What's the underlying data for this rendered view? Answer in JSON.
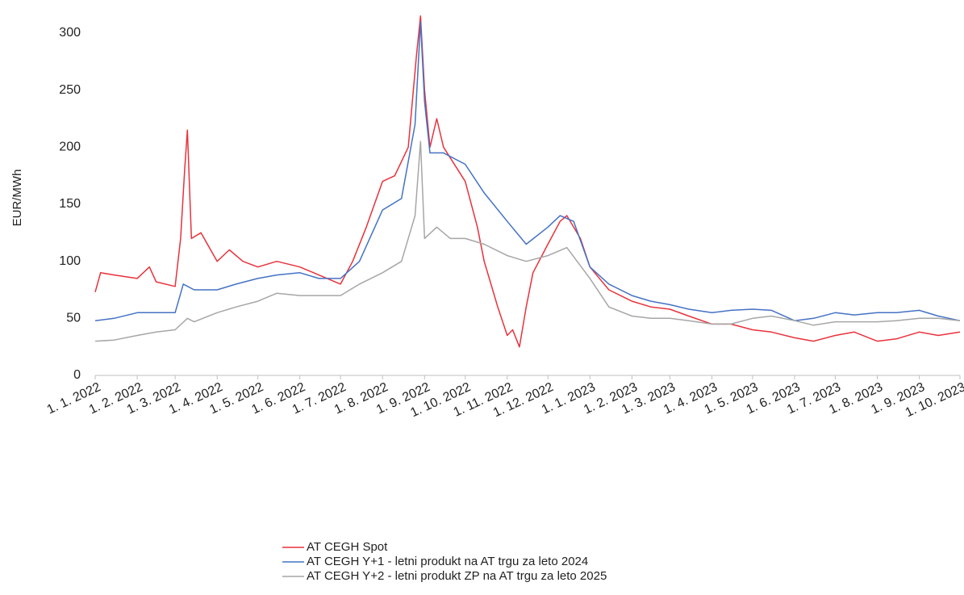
{
  "chart_data": {
    "type": "line",
    "y_label": "EUR/MWh",
    "ylim": [
      0,
      300
    ],
    "yticks": [
      0,
      50,
      100,
      150,
      200,
      250,
      300
    ],
    "xlim": [
      "2022-01-01",
      "2023-10-01"
    ],
    "xticks": [
      {
        "value": "2022-01-01",
        "label": "1. 1. 2022"
      },
      {
        "value": "2022-02-01",
        "label": "1. 2. 2022"
      },
      {
        "value": "2022-03-01",
        "label": "1. 3. 2022"
      },
      {
        "value": "2022-04-01",
        "label": "1. 4. 2022"
      },
      {
        "value": "2022-05-01",
        "label": "1. 5. 2022"
      },
      {
        "value": "2022-06-01",
        "label": "1. 6. 2022"
      },
      {
        "value": "2022-07-01",
        "label": "1. 7. 2022"
      },
      {
        "value": "2022-08-01",
        "label": "1. 8. 2022"
      },
      {
        "value": "2022-09-01",
        "label": "1. 9. 2022"
      },
      {
        "value": "2022-10-01",
        "label": "1. 10. 2022"
      },
      {
        "value": "2022-11-01",
        "label": "1. 11. 2022"
      },
      {
        "value": "2022-12-01",
        "label": "1. 12. 2022"
      },
      {
        "value": "2023-01-01",
        "label": "1. 1. 2023"
      },
      {
        "value": "2023-02-01",
        "label": "1. 2. 2023"
      },
      {
        "value": "2023-03-01",
        "label": "1. 3. 2023"
      },
      {
        "value": "2023-04-01",
        "label": "1. 4. 2023"
      },
      {
        "value": "2023-05-01",
        "label": "1. 5. 2023"
      },
      {
        "value": "2023-06-01",
        "label": "1. 6. 2023"
      },
      {
        "value": "2023-07-01",
        "label": "1. 7. 2023"
      },
      {
        "value": "2023-08-01",
        "label": "1. 8. 2023"
      },
      {
        "value": "2023-09-01",
        "label": "1. 9. 2023"
      },
      {
        "value": "2023-10-01",
        "label": "1. 10. 2023"
      }
    ],
    "series": [
      {
        "name": "AT CEGH Spot",
        "color": "#e8323c",
        "x": [
          "2022-01-01",
          "2022-01-05",
          "2022-01-15",
          "2022-02-01",
          "2022-02-10",
          "2022-02-15",
          "2022-03-01",
          "2022-03-05",
          "2022-03-08",
          "2022-03-10",
          "2022-03-13",
          "2022-03-20",
          "2022-04-01",
          "2022-04-10",
          "2022-04-20",
          "2022-05-01",
          "2022-05-15",
          "2022-06-01",
          "2022-06-15",
          "2022-07-01",
          "2022-07-10",
          "2022-07-20",
          "2022-08-01",
          "2022-08-10",
          "2022-08-20",
          "2022-08-26",
          "2022-08-29",
          "2022-09-01",
          "2022-09-05",
          "2022-09-10",
          "2022-09-15",
          "2022-10-01",
          "2022-10-10",
          "2022-10-15",
          "2022-10-20",
          "2022-10-25",
          "2022-11-01",
          "2022-11-05",
          "2022-11-10",
          "2022-11-15",
          "2022-11-20",
          "2022-12-01",
          "2022-12-10",
          "2022-12-15",
          "2022-12-25",
          "2023-01-01",
          "2023-01-15",
          "2023-02-01",
          "2023-02-15",
          "2023-03-01",
          "2023-03-15",
          "2023-04-01",
          "2023-04-15",
          "2023-05-01",
          "2023-05-15",
          "2023-06-01",
          "2023-06-15",
          "2023-07-01",
          "2023-07-15",
          "2023-08-01",
          "2023-08-15",
          "2023-09-01",
          "2023-09-15",
          "2023-10-01"
        ],
        "values": [
          73,
          90,
          88,
          85,
          95,
          82,
          78,
          120,
          180,
          215,
          120,
          125,
          100,
          110,
          100,
          95,
          100,
          95,
          88,
          80,
          100,
          130,
          170,
          175,
          200,
          280,
          315,
          250,
          200,
          225,
          200,
          170,
          130,
          100,
          80,
          60,
          35,
          40,
          25,
          60,
          90,
          115,
          135,
          140,
          120,
          95,
          75,
          65,
          60,
          58,
          52,
          45,
          45,
          40,
          38,
          33,
          30,
          35,
          38,
          30,
          32,
          38,
          35,
          38
        ]
      },
      {
        "name": "AT CEGH Y+1 - letni produkt na AT trgu za leto 2024",
        "color": "#4472c4",
        "x": [
          "2022-01-01",
          "2022-01-15",
          "2022-02-01",
          "2022-02-15",
          "2022-03-01",
          "2022-03-07",
          "2022-03-15",
          "2022-04-01",
          "2022-04-15",
          "2022-05-01",
          "2022-05-15",
          "2022-06-01",
          "2022-06-15",
          "2022-07-01",
          "2022-07-15",
          "2022-08-01",
          "2022-08-15",
          "2022-08-25",
          "2022-08-29",
          "2022-09-01",
          "2022-09-05",
          "2022-09-15",
          "2022-10-01",
          "2022-10-15",
          "2022-11-01",
          "2022-11-15",
          "2022-12-01",
          "2022-12-10",
          "2022-12-20",
          "2023-01-01",
          "2023-01-15",
          "2023-02-01",
          "2023-02-15",
          "2023-03-01",
          "2023-03-15",
          "2023-04-01",
          "2023-04-15",
          "2023-05-01",
          "2023-05-15",
          "2023-06-01",
          "2023-06-15",
          "2023-07-01",
          "2023-07-15",
          "2023-08-01",
          "2023-08-15",
          "2023-09-01",
          "2023-09-15",
          "2023-10-01"
        ],
        "values": [
          48,
          50,
          55,
          55,
          55,
          80,
          75,
          75,
          80,
          85,
          88,
          90,
          85,
          85,
          100,
          145,
          155,
          220,
          310,
          240,
          195,
          195,
          185,
          160,
          135,
          115,
          130,
          140,
          135,
          95,
          80,
          70,
          65,
          62,
          58,
          55,
          57,
          58,
          57,
          48,
          50,
          55,
          53,
          55,
          55,
          57,
          52,
          48
        ]
      },
      {
        "name": "AT CEGH Y+2 - letni produkt ZP na AT trgu za leto 2025",
        "color": "#a6a6a6",
        "x": [
          "2022-01-01",
          "2022-01-15",
          "2022-02-01",
          "2022-02-15",
          "2022-03-01",
          "2022-03-10",
          "2022-03-15",
          "2022-04-01",
          "2022-04-15",
          "2022-05-01",
          "2022-05-15",
          "2022-06-01",
          "2022-06-15",
          "2022-07-01",
          "2022-07-15",
          "2022-08-01",
          "2022-08-15",
          "2022-08-25",
          "2022-08-29",
          "2022-09-01",
          "2022-09-10",
          "2022-09-20",
          "2022-10-01",
          "2022-10-15",
          "2022-11-01",
          "2022-11-15",
          "2022-12-01",
          "2022-12-15",
          "2023-01-01",
          "2023-01-15",
          "2023-02-01",
          "2023-02-15",
          "2023-03-01",
          "2023-03-15",
          "2023-04-01",
          "2023-04-15",
          "2023-05-01",
          "2023-05-15",
          "2023-06-01",
          "2023-06-15",
          "2023-07-01",
          "2023-07-15",
          "2023-08-01",
          "2023-08-15",
          "2023-09-01",
          "2023-09-15",
          "2023-10-01"
        ],
        "values": [
          30,
          31,
          35,
          38,
          40,
          50,
          47,
          55,
          60,
          65,
          72,
          70,
          70,
          70,
          80,
          90,
          100,
          140,
          205,
          120,
          130,
          120,
          120,
          115,
          105,
          100,
          105,
          112,
          85,
          60,
          52,
          50,
          50,
          48,
          45,
          45,
          50,
          52,
          48,
          44,
          47,
          47,
          47,
          48,
          50,
          50,
          48
        ]
      }
    ]
  }
}
